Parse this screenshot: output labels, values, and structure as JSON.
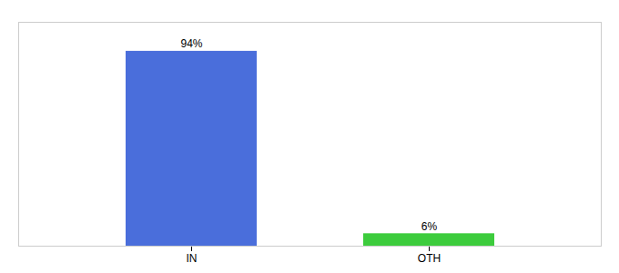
{
  "chart_data": {
    "type": "bar",
    "categories": [
      "IN",
      "OTH"
    ],
    "values": [
      94,
      6
    ],
    "value_labels": [
      "94%",
      "6%"
    ],
    "colors": [
      "#4a6edb",
      "#3dcc3d"
    ],
    "ylim": [
      0,
      108
    ],
    "yticks": [],
    "tick_labels": "x",
    "data_labels": true
  }
}
